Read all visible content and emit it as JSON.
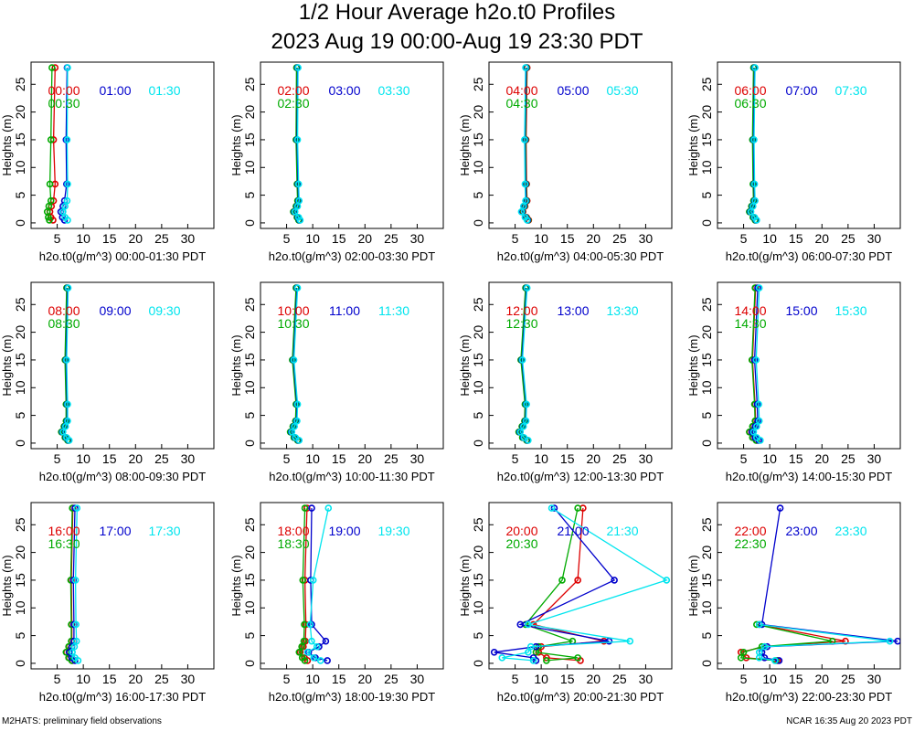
{
  "page": {
    "title": "1/2 Hour Average h2o.t0 Profiles",
    "subtitle": "2023 Aug 19 00:00-Aug 19 23:30 PDT",
    "footer_left": "M2HATS: preliminary field observations",
    "footer_right": "NCAR 16:35 Aug 20 2023 PDT"
  },
  "colors": {
    "red": "#dd0000",
    "green": "#00aa00",
    "blue": "#0000cc",
    "cyan": "#00e5ee"
  },
  "chart_data": [
    {
      "type": "line",
      "ylabel": "Heights (m)",
      "xlabel": "h2o.t0(g/m^3) 00:00-01:30 PDT",
      "xlim": [
        0,
        35
      ],
      "ylim": [
        -1,
        29
      ],
      "xticks": [
        5,
        10,
        15,
        20,
        25,
        30
      ],
      "yticks": [
        0,
        5,
        10,
        15,
        20,
        25
      ],
      "heights": [
        0.5,
        1,
        2,
        3,
        4,
        7,
        15,
        28
      ],
      "series": [
        {
          "name": "00:00",
          "color": "red",
          "values": [
            4.2,
            3.8,
            3.6,
            3.9,
            4.3,
            4.6,
            4.3,
            4.6
          ]
        },
        {
          "name": "00:30",
          "color": "green",
          "values": [
            3.5,
            3.3,
            3.1,
            3.4,
            3.8,
            3.6,
            3.8,
            4.0
          ]
        },
        {
          "name": "01:00",
          "color": "blue",
          "values": [
            6.4,
            6.0,
            5.7,
            6.1,
            6.4,
            6.8,
            6.7,
            6.9
          ]
        },
        {
          "name": "01:30",
          "color": "cyan",
          "values": [
            7.0,
            6.5,
            6.1,
            6.5,
            6.9,
            7.0,
            6.9,
            7.0
          ]
        }
      ]
    },
    {
      "type": "line",
      "ylabel": "Heights (m)",
      "xlabel": "h2o.t0(g/m^3) 02:00-03:30 PDT",
      "xlim": [
        0,
        35
      ],
      "ylim": [
        -1,
        29
      ],
      "xticks": [
        5,
        10,
        15,
        20,
        25,
        30
      ],
      "yticks": [
        0,
        5,
        10,
        15,
        20,
        25
      ],
      "heights": [
        0.5,
        1,
        2,
        3,
        4,
        7,
        15,
        28
      ],
      "series": [
        {
          "name": "02:00",
          "color": "red",
          "values": [
            7.4,
            7.1,
            6.4,
            6.9,
            7.2,
            7.1,
            6.9,
            7.0
          ]
        },
        {
          "name": "02:30",
          "color": "green",
          "values": [
            7.3,
            7.0,
            6.3,
            6.8,
            7.1,
            7.0,
            6.8,
            6.9
          ]
        },
        {
          "name": "03:00",
          "color": "blue",
          "values": [
            7.5,
            7.2,
            6.5,
            7.0,
            7.3,
            7.2,
            7.0,
            7.1
          ]
        },
        {
          "name": "03:30",
          "color": "cyan",
          "values": [
            7.6,
            7.3,
            6.6,
            7.1,
            7.4,
            7.3,
            7.1,
            7.2
          ]
        }
      ]
    },
    {
      "type": "line",
      "ylabel": "Heights (m)",
      "xlabel": "h2o.t0(g/m^3) 04:00-05:30 PDT",
      "xlim": [
        0,
        35
      ],
      "ylim": [
        -1,
        29
      ],
      "xticks": [
        5,
        10,
        15,
        20,
        25,
        30
      ],
      "yticks": [
        0,
        5,
        10,
        15,
        20,
        25
      ],
      "heights": [
        0.5,
        1,
        2,
        3,
        4,
        7,
        15,
        28
      ],
      "series": [
        {
          "name": "04:00",
          "color": "red",
          "values": [
            7.6,
            7.2,
            6.5,
            6.9,
            7.3,
            7.2,
            7.1,
            7.3
          ]
        },
        {
          "name": "04:30",
          "color": "green",
          "values": [
            7.5,
            7.1,
            6.4,
            6.8,
            7.2,
            7.1,
            7.0,
            7.2
          ]
        },
        {
          "name": "05:00",
          "color": "blue",
          "values": [
            7.4,
            7.0,
            6.3,
            6.7,
            7.1,
            7.0,
            6.9,
            7.1
          ]
        },
        {
          "name": "05:30",
          "color": "cyan",
          "values": [
            7.3,
            6.9,
            6.2,
            6.6,
            7.0,
            6.9,
            6.8,
            7.0
          ]
        }
      ]
    },
    {
      "type": "line",
      "ylabel": "Heights (m)",
      "xlabel": "h2o.t0(g/m^3) 06:00-07:30 PDT",
      "xlim": [
        0,
        35
      ],
      "ylim": [
        -1,
        29
      ],
      "xticks": [
        5,
        10,
        15,
        20,
        25,
        30
      ],
      "yticks": [
        0,
        5,
        10,
        15,
        20,
        25
      ],
      "heights": [
        0.5,
        1,
        2,
        3,
        4,
        7,
        15,
        28
      ],
      "series": [
        {
          "name": "06:00",
          "color": "red",
          "values": [
            7.3,
            6.9,
            6.2,
            6.6,
            7.0,
            6.9,
            6.8,
            7.0
          ]
        },
        {
          "name": "06:30",
          "color": "green",
          "values": [
            7.2,
            6.8,
            6.1,
            6.5,
            6.9,
            6.8,
            6.7,
            6.9
          ]
        },
        {
          "name": "07:00",
          "color": "blue",
          "values": [
            7.4,
            7.0,
            6.3,
            6.7,
            7.1,
            7.0,
            6.9,
            7.1
          ]
        },
        {
          "name": "07:30",
          "color": "cyan",
          "values": [
            7.5,
            7.1,
            6.4,
            6.8,
            7.2,
            7.1,
            7.0,
            7.2
          ]
        }
      ]
    },
    {
      "type": "line",
      "ylabel": "Heights (m)",
      "xlabel": "h2o.t0(g/m^3) 08:00-09:30 PDT",
      "xlim": [
        0,
        35
      ],
      "ylim": [
        -1,
        29
      ],
      "xticks": [
        5,
        10,
        15,
        20,
        25,
        30
      ],
      "yticks": [
        0,
        5,
        10,
        15,
        20,
        25
      ],
      "heights": [
        0.5,
        1,
        2,
        3,
        4,
        7,
        15,
        28
      ],
      "series": [
        {
          "name": "08:00",
          "color": "red",
          "values": [
            7.1,
            6.6,
            5.9,
            6.4,
            6.8,
            6.8,
            6.6,
            6.9
          ]
        },
        {
          "name": "08:30",
          "color": "green",
          "values": [
            7.0,
            6.5,
            5.8,
            6.3,
            6.7,
            6.7,
            6.5,
            6.8
          ]
        },
        {
          "name": "09:00",
          "color": "blue",
          "values": [
            7.2,
            6.7,
            6.0,
            6.5,
            6.9,
            6.9,
            6.7,
            7.0
          ]
        },
        {
          "name": "09:30",
          "color": "cyan",
          "values": [
            7.3,
            6.8,
            6.1,
            6.6,
            7.0,
            7.0,
            6.8,
            7.1
          ]
        }
      ]
    },
    {
      "type": "line",
      "ylabel": "Heights (m)",
      "xlabel": "h2o.t0(g/m^3) 10:00-11:30 PDT",
      "xlim": [
        0,
        35
      ],
      "ylim": [
        -1,
        29
      ],
      "xticks": [
        5,
        10,
        15,
        20,
        25,
        30
      ],
      "yticks": [
        0,
        5,
        10,
        15,
        20,
        25
      ],
      "heights": [
        0.5,
        1,
        2,
        3,
        4,
        7,
        15,
        28
      ],
      "series": [
        {
          "name": "10:00",
          "color": "red",
          "values": [
            7.2,
            6.5,
            5.8,
            6.3,
            6.8,
            6.9,
            6.2,
            6.9
          ]
        },
        {
          "name": "10:30",
          "color": "green",
          "values": [
            7.1,
            6.4,
            5.7,
            6.2,
            6.7,
            6.8,
            6.1,
            6.8
          ]
        },
        {
          "name": "11:00",
          "color": "blue",
          "values": [
            7.3,
            6.6,
            5.9,
            6.4,
            6.9,
            7.0,
            6.3,
            7.0
          ]
        },
        {
          "name": "11:30",
          "color": "cyan",
          "values": [
            7.4,
            6.7,
            6.0,
            6.5,
            7.0,
            7.1,
            6.4,
            7.1
          ]
        }
      ]
    },
    {
      "type": "line",
      "ylabel": "Heights (m)",
      "xlabel": "h2o.t0(g/m^3) 12:00-13:30 PDT",
      "xlim": [
        0,
        35
      ],
      "ylim": [
        -1,
        29
      ],
      "xticks": [
        5,
        10,
        15,
        20,
        25,
        30
      ],
      "yticks": [
        0,
        5,
        10,
        15,
        20,
        25
      ],
      "heights": [
        0.5,
        1,
        2,
        3,
        4,
        7,
        15,
        28
      ],
      "series": [
        {
          "name": "12:00",
          "color": "red",
          "values": [
            7.3,
            6.5,
            5.8,
            6.4,
            6.9,
            7.0,
            6.2,
            7.1
          ]
        },
        {
          "name": "12:30",
          "color": "green",
          "values": [
            7.2,
            6.4,
            5.7,
            6.3,
            6.8,
            6.9,
            6.1,
            7.0
          ]
        },
        {
          "name": "13:00",
          "color": "blue",
          "values": [
            7.4,
            6.6,
            5.9,
            6.5,
            7.0,
            7.1,
            6.3,
            7.2
          ]
        },
        {
          "name": "13:30",
          "color": "cyan",
          "values": [
            7.5,
            6.7,
            6.0,
            6.6,
            7.1,
            7.2,
            6.4,
            7.3
          ]
        }
      ]
    },
    {
      "type": "line",
      "ylabel": "Heights (m)",
      "xlabel": "h2o.t0(g/m^3) 14:00-15:30 PDT",
      "xlim": [
        0,
        35
      ],
      "ylim": [
        -1,
        29
      ],
      "xticks": [
        5,
        10,
        15,
        20,
        25,
        30
      ],
      "yticks": [
        0,
        5,
        10,
        15,
        20,
        25
      ],
      "heights": [
        0.5,
        1,
        2,
        3,
        4,
        7,
        15,
        28
      ],
      "series": [
        {
          "name": "14:00",
          "color": "red",
          "values": [
            7.5,
            6.8,
            6.2,
            6.8,
            7.3,
            7.2,
            6.7,
            7.3
          ]
        },
        {
          "name": "14:30",
          "color": "green",
          "values": [
            7.4,
            6.7,
            6.1,
            6.7,
            7.2,
            7.1,
            6.6,
            7.2
          ]
        },
        {
          "name": "15:00",
          "color": "blue",
          "values": [
            7.9,
            7.2,
            6.6,
            7.2,
            7.7,
            7.6,
            7.1,
            7.7
          ]
        },
        {
          "name": "15:30",
          "color": "cyan",
          "values": [
            8.2,
            7.5,
            6.9,
            7.5,
            8.0,
            7.9,
            7.4,
            8.0
          ]
        }
      ]
    },
    {
      "type": "line",
      "ylabel": "Heights (m)",
      "xlabel": "h2o.t0(g/m^3) 16:00-17:30 PDT",
      "xlim": [
        0,
        35
      ],
      "ylim": [
        -1,
        29
      ],
      "xticks": [
        5,
        10,
        15,
        20,
        25,
        30
      ],
      "yticks": [
        0,
        5,
        10,
        15,
        20,
        25
      ],
      "heights": [
        0.5,
        1,
        2,
        3,
        4,
        7,
        15,
        28
      ],
      "series": [
        {
          "name": "16:00",
          "color": "red",
          "values": [
            7.9,
            7.3,
            6.8,
            7.3,
            7.8,
            7.8,
            7.7,
            8.0
          ]
        },
        {
          "name": "16:30",
          "color": "green",
          "values": [
            7.8,
            7.2,
            6.7,
            7.2,
            7.7,
            7.7,
            7.6,
            7.9
          ]
        },
        {
          "name": "17:00",
          "color": "blue",
          "values": [
            8.4,
            7.8,
            7.3,
            7.8,
            8.2,
            8.2,
            8.1,
            8.4
          ]
        },
        {
          "name": "17:30",
          "color": "cyan",
          "values": [
            9.0,
            8.4,
            7.9,
            8.3,
            8.7,
            8.6,
            8.5,
            8.8
          ]
        }
      ]
    },
    {
      "type": "line",
      "ylabel": "Heights (m)",
      "xlabel": "h2o.t0(g/m^3) 18:00-19:30 PDT",
      "xlim": [
        0,
        35
      ],
      "ylim": [
        -1,
        29
      ],
      "xticks": [
        5,
        10,
        15,
        20,
        25,
        30
      ],
      "yticks": [
        0,
        5,
        10,
        15,
        20,
        25
      ],
      "heights": [
        0.5,
        1,
        2,
        3,
        4,
        7,
        15,
        28
      ],
      "series": [
        {
          "name": "18:00",
          "color": "red",
          "values": [
            9.0,
            8.4,
            7.6,
            8.2,
            8.6,
            8.7,
            8.5,
            8.9
          ]
        },
        {
          "name": "18:30",
          "color": "green",
          "values": [
            8.5,
            8.0,
            7.4,
            7.9,
            8.3,
            8.4,
            8.1,
            8.5
          ]
        },
        {
          "name": "19:00",
          "color": "blue",
          "values": [
            12.8,
            10.5,
            9.2,
            11.2,
            12.5,
            9.8,
            9.6,
            9.8
          ]
        },
        {
          "name": "19:30",
          "color": "cyan",
          "values": [
            11.5,
            10.2,
            9.0,
            10.8,
            9.8,
            9.5,
            10.1,
            13.0
          ]
        }
      ]
    },
    {
      "type": "line",
      "ylabel": "Heights (m)",
      "xlabel": "h2o.t0(g/m^3) 20:00-21:30 PDT",
      "xlim": [
        0,
        35
      ],
      "ylim": [
        -1,
        29
      ],
      "xticks": [
        5,
        10,
        15,
        20,
        25,
        30
      ],
      "yticks": [
        0,
        5,
        10,
        15,
        20,
        25
      ],
      "heights": [
        0.5,
        1,
        2,
        3,
        4,
        7,
        15,
        28
      ],
      "series": [
        {
          "name": "20:00",
          "color": "red",
          "values": [
            17.5,
            11.0,
            9.5,
            10.0,
            22.0,
            8.5,
            17.0,
            18.0
          ]
        },
        {
          "name": "20:30",
          "color": "green",
          "values": [
            11.0,
            17.0,
            9.0,
            9.5,
            16.0,
            7.0,
            14.0,
            17.0
          ]
        },
        {
          "name": "21:00",
          "color": "blue",
          "values": [
            9.0,
            8.5,
            1.0,
            9.0,
            23.0,
            6.0,
            24.0,
            12.5
          ]
        },
        {
          "name": "21:30",
          "color": "cyan",
          "values": [
            8.5,
            2.5,
            7.5,
            8.0,
            27.0,
            7.5,
            34.0,
            12.0
          ]
        }
      ]
    },
    {
      "type": "line",
      "ylabel": "Heights (m)",
      "xlabel": "h2o.t0(g/m^3) 22:00-23:30 PDT",
      "xlim": [
        0,
        35
      ],
      "ylim": [
        -1,
        29
      ],
      "xticks": [
        5,
        10,
        15,
        20,
        25,
        30
      ],
      "yticks": [
        0,
        5,
        10,
        15,
        20,
        25
      ],
      "heights": [
        0.5,
        1,
        2,
        3,
        4,
        7,
        15,
        28
      ],
      "series": [
        {
          "name": "22:00",
          "color": "red",
          "values": [
            11.5,
            5.5,
            4.5,
            9.0,
            24.5,
            8.0
          ],
          "heights": [
            0.5,
            1,
            2,
            3,
            4,
            7
          ]
        },
        {
          "name": "22:30",
          "color": "green",
          "values": [
            11.2,
            4.5,
            5.0,
            8.5,
            22.0,
            7.5
          ],
          "heights": [
            0.5,
            1,
            2,
            3,
            4,
            7
          ]
        },
        {
          "name": "23:00",
          "color": "blue",
          "values": [
            11.8,
            9.0,
            8.5,
            9.5,
            34.5,
            8.5,
            12.0
          ],
          "heights": [
            0.5,
            1,
            2,
            3,
            4,
            7,
            28
          ]
        },
        {
          "name": "23:30",
          "color": "cyan",
          "values": [
            11.0,
            8.0,
            8.0,
            9.0,
            33.0,
            8.0
          ],
          "heights": [
            0.5,
            1,
            2,
            3,
            4,
            7
          ]
        }
      ]
    }
  ]
}
